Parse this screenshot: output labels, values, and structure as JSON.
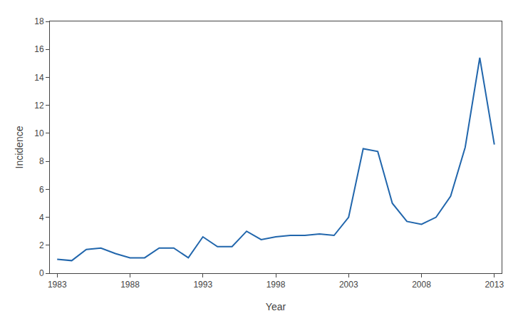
{
  "chart_data": {
    "type": "line",
    "x": [
      1983,
      1984,
      1985,
      1986,
      1987,
      1988,
      1989,
      1990,
      1991,
      1992,
      1993,
      1994,
      1995,
      1996,
      1997,
      1998,
      1999,
      2000,
      2001,
      2002,
      2003,
      2004,
      2005,
      2006,
      2007,
      2008,
      2009,
      2010,
      2011,
      2012,
      2013
    ],
    "values": [
      1.0,
      0.9,
      1.7,
      1.8,
      1.4,
      1.1,
      1.1,
      1.8,
      1.8,
      1.1,
      2.6,
      1.9,
      1.9,
      3.0,
      2.4,
      2.6,
      2.7,
      2.7,
      2.8,
      2.7,
      4.0,
      8.9,
      8.7,
      5.0,
      3.7,
      3.5,
      4.0,
      5.5,
      9.0,
      15.4,
      9.2
    ],
    "color": "#2166ac",
    "xlabel": "Year",
    "ylabel": "Incidence",
    "xlim": [
      1982.5,
      2013.5
    ],
    "xticks": [
      1983,
      1988,
      1993,
      1998,
      2003,
      2008,
      2013
    ],
    "ylim": [
      0,
      18
    ],
    "yticks": [
      0,
      2,
      4,
      6,
      8,
      10,
      12,
      14,
      16,
      18
    ],
    "grid": false
  }
}
